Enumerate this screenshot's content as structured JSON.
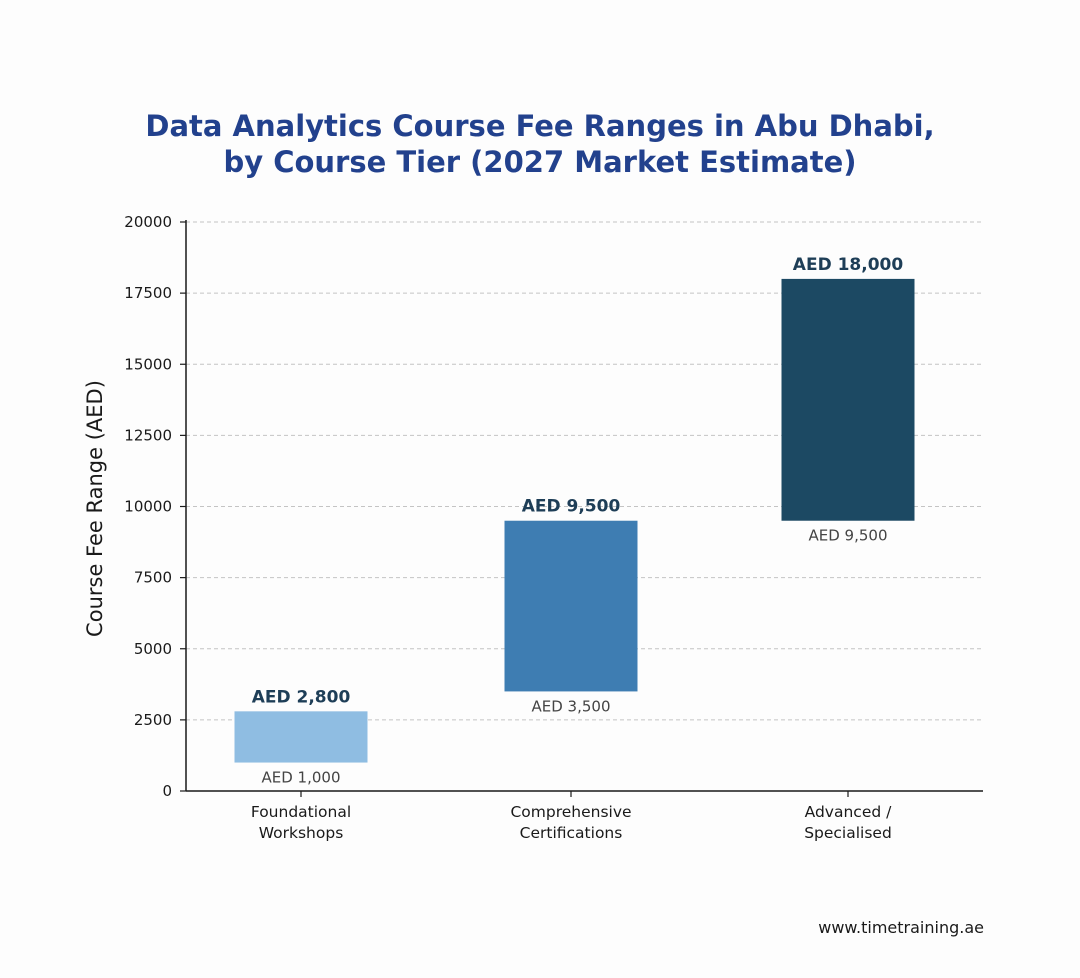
{
  "title_line1": "Data Analytics Course Fee Ranges in Abu Dhabi,",
  "title_line2": "by Course Tier (2027 Market Estimate)",
  "footer": "www.timetraining.ae",
  "chart_data": {
    "type": "bar",
    "subtype": "floating-range",
    "title": "Data Analytics Course Fee Ranges in Abu Dhabi, by Course Tier (2027 Market Estimate)",
    "xlabel": "",
    "ylabel": "Course Fee Range (AED)",
    "ylim": [
      0,
      20000
    ],
    "yticks": [
      0,
      2500,
      5000,
      7500,
      10000,
      12500,
      15000,
      17500,
      20000
    ],
    "grid": true,
    "categories": [
      [
        "Foundational",
        "Workshops"
      ],
      [
        "Comprehensive",
        "Certifications"
      ],
      [
        "Advanced /",
        "Specialised"
      ]
    ],
    "low": [
      1000,
      3500,
      9500
    ],
    "high": [
      2800,
      9500,
      18000
    ],
    "low_labels": [
      "AED 1,000",
      "AED 3,500",
      "AED 9,500"
    ],
    "high_labels": [
      "AED 2,800",
      "AED 9,500",
      "AED 18,000"
    ],
    "colors": [
      "#8fbde2",
      "#3e7db2",
      "#1c4963"
    ],
    "high_label_color": "#1e3e57",
    "low_label_color": "#444444",
    "axis_color": "#1a1a1a",
    "grid_color": "#c4c4c4"
  }
}
